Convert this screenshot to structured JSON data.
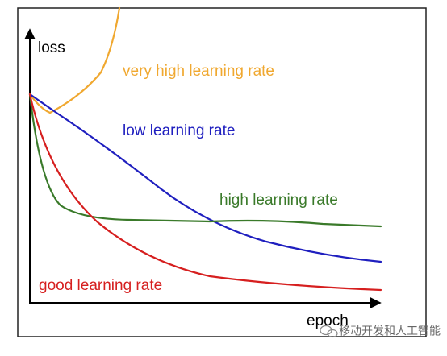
{
  "axes": {
    "y_label": "loss",
    "x_label": "epoch"
  },
  "curves": [
    {
      "label": "very high learning rate"
    },
    {
      "label": "low learning rate"
    },
    {
      "label": "high learning rate"
    },
    {
      "label": "good learning rate"
    }
  ],
  "watermark": "移动开发和人工智能"
}
